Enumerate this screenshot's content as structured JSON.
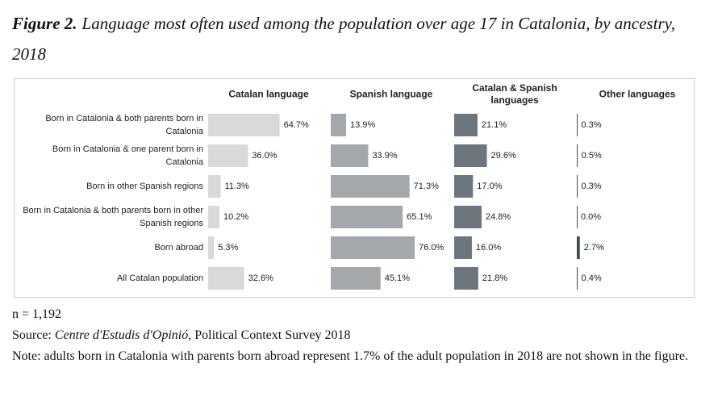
{
  "chart_data": {
    "type": "bar",
    "label": "Figure 2.",
    "title": "Language most often used among the population over age 17 in Catalonia, by ancestry, 2018",
    "categories": [
      "Born in Catalonia & both parents born in Catalonia",
      "Born in Catalonia & one parent born in Catalonia",
      "Born in other Spanish regions",
      "Born in Catalonia & both parents born in other Spanish regions",
      "Born abroad",
      "All Catalan population"
    ],
    "xlim": [
      0,
      100
    ],
    "series": [
      {
        "name": "Catalan language",
        "color": "#d9d9d9",
        "values": [
          64.7,
          36.0,
          11.3,
          10.2,
          5.3,
          32.6
        ],
        "value_labels": [
          "64.7%",
          "36.0%",
          "11.3%",
          "10.2%",
          "5.3%",
          "32.6%"
        ]
      },
      {
        "name": "Spanish language",
        "color": "#a5a8aa",
        "values": [
          13.9,
          33.9,
          71.3,
          65.1,
          76.0,
          45.1
        ],
        "value_labels": [
          "13.9%",
          "33.9%",
          "71.3%",
          "65.1%",
          "76.0%",
          "45.1%"
        ]
      },
      {
        "name": "Catalan & Spanish languages",
        "color": "#6d757d",
        "values": [
          21.1,
          29.6,
          17.0,
          24.8,
          16.0,
          21.8
        ],
        "value_labels": [
          "21.1%",
          "29.6%",
          "17.0%",
          "24.8%",
          "16.0%",
          "21.8%"
        ]
      },
      {
        "name": "Other languages",
        "color": "#3f4a55",
        "values": [
          0.3,
          0.5,
          0.3,
          0.0,
          2.7,
          0.4
        ],
        "value_labels": [
          "0.3%",
          "0.5%",
          "0.3%",
          "0.0%",
          "2.7%",
          "0.4%"
        ]
      }
    ],
    "n": "n = 1,192",
    "source": {
      "prefix": "Source:",
      "publisher": "Centre d'Estudis d'Opinió",
      "suffix": ", Political Context Survey 2018"
    },
    "note": "Note: adults born in Catalonia with parents born abroad represent 1.7% of the adult population in 2018 are not shown in the figure."
  }
}
